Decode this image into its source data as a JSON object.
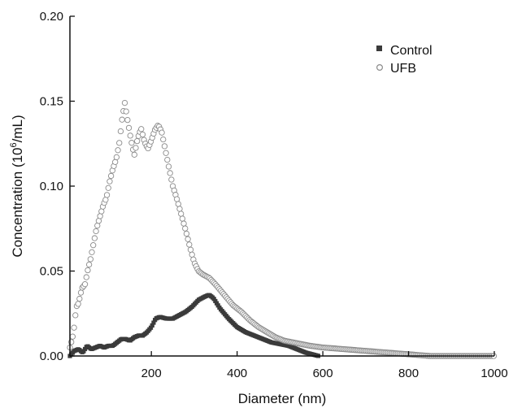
{
  "chart_data": {
    "type": "scatter",
    "xlabel": "Diameter (nm)",
    "ylabel_parts": [
      "Concentration (10",
      "6",
      "/mL)"
    ],
    "xlim": [
      10,
      1000
    ],
    "ylim": [
      0,
      0.2
    ],
    "x_ticks": [
      200,
      400,
      600,
      800,
      1000
    ],
    "x_tick_labels": [
      "200",
      "400",
      "600",
      "800",
      "1000"
    ],
    "y_ticks": [
      0,
      0.05,
      0.1,
      0.15,
      0.2
    ],
    "y_tick_labels": [
      "0.00",
      "0.05",
      "0.10",
      "0.15",
      "0.20"
    ],
    "legend_position": "top-right",
    "grid": false,
    "series": [
      {
        "name": "Control",
        "marker": "filled-square",
        "color": "#3a3a3a",
        "anchors": [
          [
            10,
            0.0
          ],
          [
            20,
            0.003
          ],
          [
            30,
            0.004
          ],
          [
            40,
            0.002
          ],
          [
            50,
            0.006
          ],
          [
            60,
            0.004
          ],
          [
            70,
            0.005
          ],
          [
            80,
            0.006
          ],
          [
            90,
            0.005
          ],
          [
            100,
            0.006
          ],
          [
            110,
            0.006
          ],
          [
            120,
            0.008
          ],
          [
            130,
            0.01
          ],
          [
            140,
            0.01
          ],
          [
            150,
            0.009
          ],
          [
            160,
            0.011
          ],
          [
            170,
            0.012
          ],
          [
            180,
            0.012
          ],
          [
            190,
            0.014
          ],
          [
            200,
            0.017
          ],
          [
            210,
            0.022
          ],
          [
            220,
            0.023
          ],
          [
            235,
            0.022
          ],
          [
            250,
            0.022
          ],
          [
            265,
            0.024
          ],
          [
            280,
            0.026
          ],
          [
            295,
            0.029
          ],
          [
            310,
            0.033
          ],
          [
            325,
            0.035
          ],
          [
            335,
            0.036
          ],
          [
            345,
            0.034
          ],
          [
            360,
            0.028
          ],
          [
            380,
            0.022
          ],
          [
            400,
            0.017
          ],
          [
            420,
            0.014
          ],
          [
            440,
            0.012
          ],
          [
            460,
            0.01
          ],
          [
            480,
            0.008
          ],
          [
            500,
            0.007
          ],
          [
            520,
            0.006
          ],
          [
            540,
            0.004
          ],
          [
            560,
            0.002
          ],
          [
            575,
            0.001
          ],
          [
            590,
            0.0
          ]
        ]
      },
      {
        "name": "UFB",
        "marker": "open-circle",
        "color": "#8a8a8a",
        "anchors": [
          [
            10,
            0.005
          ],
          [
            18,
            0.013
          ],
          [
            25,
            0.029
          ],
          [
            30,
            0.031
          ],
          [
            38,
            0.04
          ],
          [
            45,
            0.042
          ],
          [
            52,
            0.051
          ],
          [
            58,
            0.057
          ],
          [
            65,
            0.066
          ],
          [
            72,
            0.075
          ],
          [
            80,
            0.082
          ],
          [
            88,
            0.089
          ],
          [
            95,
            0.093
          ],
          [
            102,
            0.102
          ],
          [
            110,
            0.11
          ],
          [
            118,
            0.116
          ],
          [
            125,
            0.125
          ],
          [
            132,
            0.14
          ],
          [
            138,
            0.149
          ],
          [
            145,
            0.138
          ],
          [
            152,
            0.128
          ],
          [
            160,
            0.118
          ],
          [
            168,
            0.128
          ],
          [
            176,
            0.134
          ],
          [
            184,
            0.126
          ],
          [
            192,
            0.122
          ],
          [
            200,
            0.127
          ],
          [
            208,
            0.133
          ],
          [
            216,
            0.136
          ],
          [
            224,
            0.132
          ],
          [
            232,
            0.122
          ],
          [
            240,
            0.112
          ],
          [
            250,
            0.1
          ],
          [
            260,
            0.092
          ],
          [
            270,
            0.083
          ],
          [
            280,
            0.074
          ],
          [
            290,
            0.064
          ],
          [
            300,
            0.055
          ],
          [
            310,
            0.05
          ],
          [
            320,
            0.048
          ],
          [
            335,
            0.046
          ],
          [
            350,
            0.042
          ],
          [
            370,
            0.036
          ],
          [
            390,
            0.03
          ],
          [
            410,
            0.026
          ],
          [
            430,
            0.021
          ],
          [
            450,
            0.017
          ],
          [
            470,
            0.014
          ],
          [
            490,
            0.011
          ],
          [
            510,
            0.009
          ],
          [
            530,
            0.008
          ],
          [
            550,
            0.007
          ],
          [
            570,
            0.006
          ],
          [
            600,
            0.005
          ],
          [
            650,
            0.004
          ],
          [
            700,
            0.003
          ],
          [
            750,
            0.002
          ],
          [
            800,
            0.001
          ],
          [
            850,
            0.0
          ],
          [
            900,
            0.0
          ],
          [
            1000,
            0.0
          ]
        ]
      }
    ]
  }
}
